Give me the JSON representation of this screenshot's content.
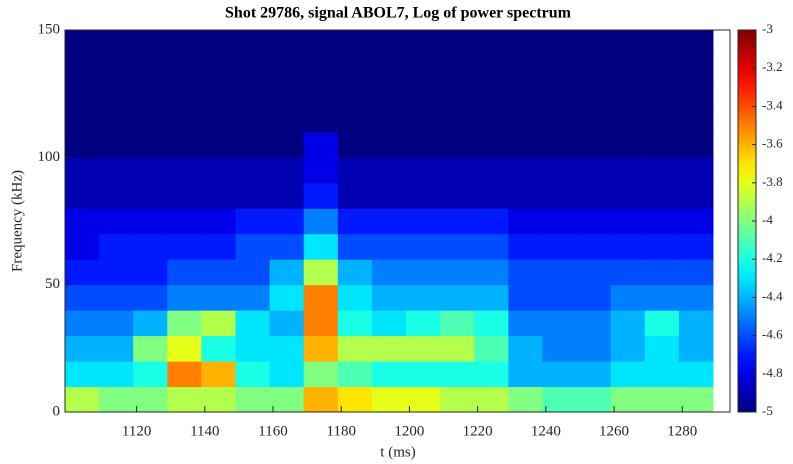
{
  "chart_data": {
    "type": "heatmap",
    "title": "Shot 29786, signal ABOL7, Log of power spectrum",
    "xlabel": "t (ms)",
    "ylabel": "Frequency (kHz)",
    "colormap": "jet",
    "x": [
      1104,
      1114,
      1124,
      1134,
      1144,
      1154,
      1164,
      1174,
      1184,
      1194,
      1204,
      1214,
      1224,
      1234,
      1244,
      1254,
      1264,
      1274,
      1284
    ],
    "y": [
      5,
      15,
      25,
      35,
      45,
      55,
      65,
      75,
      85,
      95,
      105,
      115,
      125,
      135,
      145
    ],
    "z": [
      [
        -3.9,
        -4.0,
        -4.0,
        -3.9,
        -3.9,
        -4.0,
        -4.0,
        -3.6,
        -3.7,
        -3.8,
        -3.8,
        -3.9,
        -3.9,
        -4.0,
        -4.1,
        -4.1,
        -4.0,
        -4.0,
        -4.0
      ],
      [
        -4.3,
        -4.3,
        -4.2,
        -3.5,
        -3.6,
        -4.2,
        -4.3,
        -4.0,
        -4.1,
        -4.2,
        -4.2,
        -4.2,
        -4.2,
        -4.4,
        -4.4,
        -4.4,
        -4.3,
        -4.3,
        -4.3
      ],
      [
        -4.4,
        -4.4,
        -4.0,
        -3.8,
        -4.2,
        -4.3,
        -4.3,
        -3.6,
        -3.9,
        -3.9,
        -3.9,
        -3.9,
        -4.1,
        -4.4,
        -4.5,
        -4.5,
        -4.4,
        -4.3,
        -4.4
      ],
      [
        -4.5,
        -4.5,
        -4.4,
        -4.0,
        -3.9,
        -4.3,
        -4.4,
        -3.5,
        -4.2,
        -4.3,
        -4.2,
        -4.1,
        -4.2,
        -4.5,
        -4.5,
        -4.5,
        -4.4,
        -4.2,
        -4.4
      ],
      [
        -4.6,
        -4.6,
        -4.6,
        -4.5,
        -4.5,
        -4.5,
        -4.3,
        -3.5,
        -4.3,
        -4.4,
        -4.4,
        -4.4,
        -4.4,
        -4.6,
        -4.6,
        -4.6,
        -4.5,
        -4.5,
        -4.5
      ],
      [
        -4.7,
        -4.7,
        -4.7,
        -4.6,
        -4.6,
        -4.6,
        -4.4,
        -3.9,
        -4.4,
        -4.5,
        -4.5,
        -4.5,
        -4.5,
        -4.6,
        -4.6,
        -4.6,
        -4.6,
        -4.6,
        -4.6
      ],
      [
        -4.8,
        -4.7,
        -4.7,
        -4.7,
        -4.7,
        -4.6,
        -4.6,
        -4.3,
        -4.6,
        -4.6,
        -4.6,
        -4.6,
        -4.6,
        -4.7,
        -4.7,
        -4.7,
        -4.7,
        -4.7,
        -4.7
      ],
      [
        -4.8,
        -4.8,
        -4.8,
        -4.8,
        -4.8,
        -4.7,
        -4.7,
        -4.5,
        -4.7,
        -4.7,
        -4.7,
        -4.7,
        -4.7,
        -4.8,
        -4.8,
        -4.8,
        -4.8,
        -4.8,
        -4.8
      ],
      [
        -4.9,
        -4.9,
        -4.9,
        -4.9,
        -4.9,
        -4.9,
        -4.9,
        -4.7,
        -4.9,
        -4.9,
        -4.9,
        -4.9,
        -4.9,
        -4.9,
        -4.9,
        -4.9,
        -4.9,
        -4.9,
        -4.9
      ],
      [
        -4.9,
        -4.9,
        -4.9,
        -4.9,
        -4.9,
        -4.9,
        -4.9,
        -4.8,
        -4.9,
        -4.9,
        -4.9,
        -4.9,
        -4.9,
        -4.9,
        -4.9,
        -4.9,
        -4.9,
        -4.9,
        -4.9
      ],
      [
        -5,
        -5,
        -5,
        -5,
        -5,
        -5,
        -5,
        -4.8,
        -5,
        -5,
        -5,
        -5,
        -5,
        -5,
        -5,
        -5,
        -5,
        -5,
        -5
      ],
      [
        -5,
        -5,
        -5,
        -5,
        -5,
        -5,
        -5,
        -5,
        -5,
        -5,
        -5,
        -5,
        -5,
        -5,
        -5,
        -5,
        -5,
        -5,
        -5
      ],
      [
        -5,
        -5,
        -5,
        -5,
        -5,
        -5,
        -5,
        -5,
        -5,
        -5,
        -5,
        -5,
        -5,
        -5,
        -5,
        -5,
        -5,
        -5,
        -5
      ],
      [
        -5,
        -5,
        -5,
        -5,
        -5,
        -5,
        -5,
        -5,
        -5,
        -5,
        -5,
        -5,
        -5,
        -5,
        -5,
        -5,
        -5,
        -5,
        -5
      ],
      [
        -5,
        -5,
        -5,
        -5,
        -5,
        -5,
        -5,
        -5,
        -5,
        -5,
        -5,
        -5,
        -5,
        -5,
        -5,
        -5,
        -5,
        -5,
        -5
      ]
    ],
    "xlim": [
      1099,
      1294
    ],
    "ylim": [
      0,
      150
    ],
    "xticks": [
      1120,
      1140,
      1160,
      1180,
      1200,
      1220,
      1240,
      1260,
      1280
    ],
    "yticks": [
      0,
      50,
      100,
      150
    ],
    "clim": [
      -5,
      -3
    ],
    "cticks": [
      -3,
      -3.2,
      -3.4,
      -3.6,
      -3.8,
      -4,
      -4.2,
      -4.4,
      -4.6,
      -4.8,
      -5
    ]
  }
}
